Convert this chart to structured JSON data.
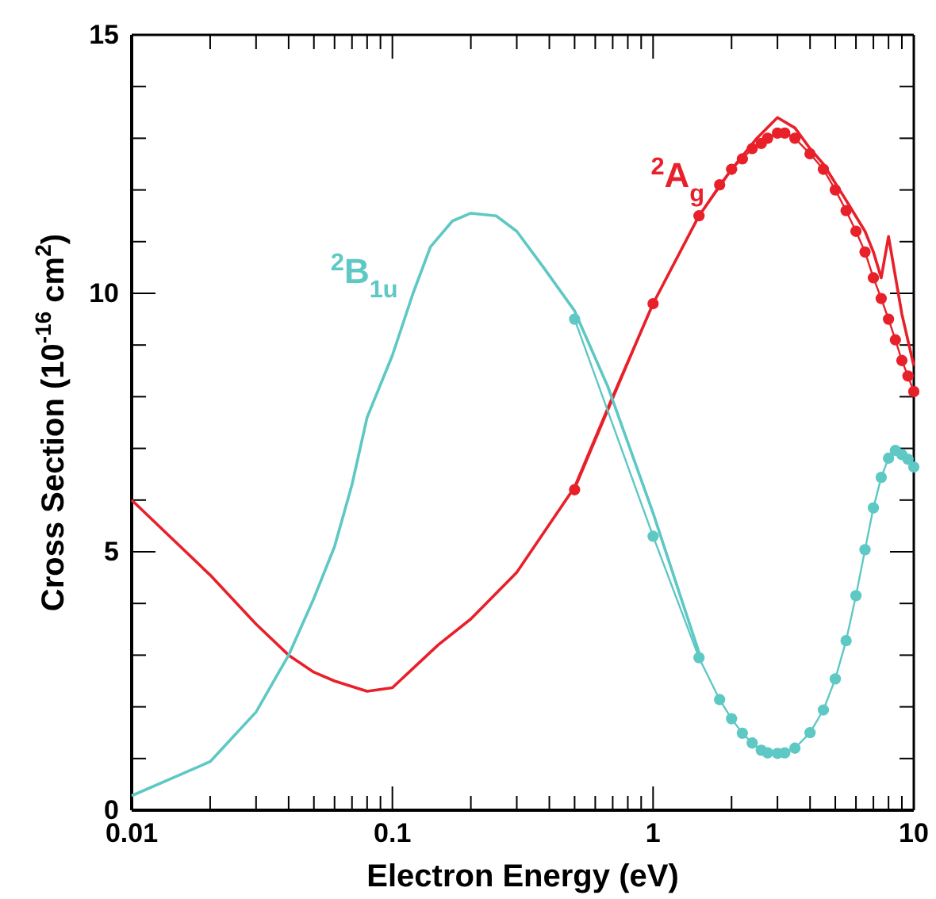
{
  "chart_data": {
    "type": "line",
    "xlabel": "Electron Energy (eV)",
    "ylabel": "Cross Section (10$^{-16}$ cm$^{2}$)",
    "log": "x",
    "xlim": [
      0.01,
      10
    ],
    "ylim": [
      0,
      15
    ],
    "xticks": [
      0.01,
      {
        "value": 0.02,
        "label": null
      },
      {
        "value": 0.03,
        "label": null
      },
      {
        "value": 0.04,
        "label": null
      },
      {
        "value": 0.05,
        "label": null
      },
      {
        "value": 0.06,
        "label": null
      },
      {
        "value": 0.07,
        "label": null
      },
      {
        "value": 0.08,
        "label": null
      },
      {
        "value": 0.09,
        "label": null
      },
      0.1,
      {
        "value": 0.2,
        "label": null
      },
      {
        "value": 0.3,
        "label": null
      },
      {
        "value": 0.4,
        "label": null
      },
      {
        "value": 0.5,
        "label": null
      },
      {
        "value": 0.6,
        "label": null
      },
      {
        "value": 0.7,
        "label": null
      },
      {
        "value": 0.8,
        "label": null
      },
      {
        "value": 0.9,
        "label": null
      },
      1,
      {
        "value": 2,
        "label": null
      },
      {
        "value": 3,
        "label": null
      },
      {
        "value": 4,
        "label": null
      },
      {
        "value": 5,
        "label": null
      },
      {
        "value": 6,
        "label": null
      },
      {
        "value": 7,
        "label": null
      },
      {
        "value": 8,
        "label": null
      },
      {
        "value": 9,
        "label": null
      },
      10
    ],
    "yticks": [
      0,
      {
        "value": 1,
        "label": null
      },
      {
        "value": 2,
        "label": null
      },
      {
        "value": 3,
        "label": null
      },
      {
        "value": 4,
        "label": null
      },
      5,
      {
        "value": 6,
        "label": null
      },
      {
        "value": 7,
        "label": null
      },
      {
        "value": 8,
        "label": null
      },
      {
        "value": 9,
        "label": null
      },
      10,
      {
        "value": 11,
        "label": null
      },
      {
        "value": 12,
        "label": null
      },
      {
        "value": 13,
        "label": null
      },
      {
        "value": 14,
        "label": null
      },
      15
    ],
    "grid": false,
    "series": [
      {
        "name": "$^{2}$A$_{g}$",
        "color": "#e8202a",
        "marker": "none",
        "x": [
          0.01,
          0.02,
          0.03,
          0.04,
          0.05,
          0.06,
          0.08,
          0.1,
          0.15,
          0.2,
          0.3,
          0.5,
          0.7,
          1,
          1.5,
          2,
          2.5,
          3,
          3.5,
          4,
          4.5,
          5.5,
          6.5,
          7,
          7.5,
          8,
          9,
          10
        ],
        "values": [
          6.0,
          4.55,
          3.6,
          3.0,
          2.67,
          2.5,
          2.3,
          2.37,
          3.2,
          3.7,
          4.6,
          6.25,
          8.0,
          9.8,
          11.5,
          12.4,
          13.0,
          13.4,
          13.2,
          12.8,
          12.5,
          11.8,
          11.2,
          10.8,
          10.3,
          11.1,
          9.6,
          8.6
        ]
      },
      {
        "color": "#e8202a",
        "marker": "circle",
        "x": [
          0.5,
          1,
          1.5,
          1.8,
          2,
          2.2,
          2.4,
          2.6,
          2.75,
          3,
          3.2,
          3.5,
          4,
          4.5,
          5,
          5.5,
          6,
          6.5,
          7,
          7.5,
          8,
          8.5,
          9,
          9.5,
          10
        ],
        "values": [
          6.2,
          9.8,
          11.5,
          12.1,
          12.4,
          12.6,
          12.8,
          12.9,
          13.0,
          13.1,
          13.1,
          13.0,
          12.7,
          12.4,
          12.0,
          11.6,
          11.2,
          10.8,
          10.3,
          9.9,
          9.5,
          9.1,
          8.7,
          8.4,
          8.1
        ]
      },
      {
        "name": "$^{2}$B$_{1u}$",
        "color": "#5ec8c4",
        "marker": "none",
        "x": [
          0.01,
          0.02,
          0.03,
          0.04,
          0.05,
          0.06,
          0.07,
          0.08,
          0.1,
          0.12,
          0.14,
          0.17,
          0.2,
          0.25,
          0.3,
          0.38,
          0.5,
          0.67,
          1,
          1.5
        ],
        "values": [
          0.28,
          0.94,
          1.9,
          3.0,
          4.1,
          5.1,
          6.3,
          7.6,
          8.8,
          10.0,
          10.9,
          11.4,
          11.55,
          11.5,
          11.2,
          10.5,
          9.66,
          8.2,
          5.75,
          3.05
        ]
      },
      {
        "color": "#5ec8c4",
        "marker": "circle",
        "x": [
          0.5,
          1,
          1.5,
          1.8,
          2,
          2.2,
          2.4,
          2.6,
          2.75,
          3,
          3.2,
          3.5,
          4,
          4.5,
          5,
          5.5,
          6,
          6.5,
          7,
          7.5,
          8,
          8.5,
          9,
          9.5,
          10
        ],
        "values": [
          9.5,
          5.3,
          2.95,
          2.14,
          1.77,
          1.49,
          1.3,
          1.16,
          1.11,
          1.1,
          1.11,
          1.2,
          1.5,
          1.94,
          2.54,
          3.28,
          4.15,
          5.04,
          5.85,
          6.44,
          6.81,
          6.96,
          6.88,
          6.79,
          6.64
        ]
      }
    ]
  }
}
